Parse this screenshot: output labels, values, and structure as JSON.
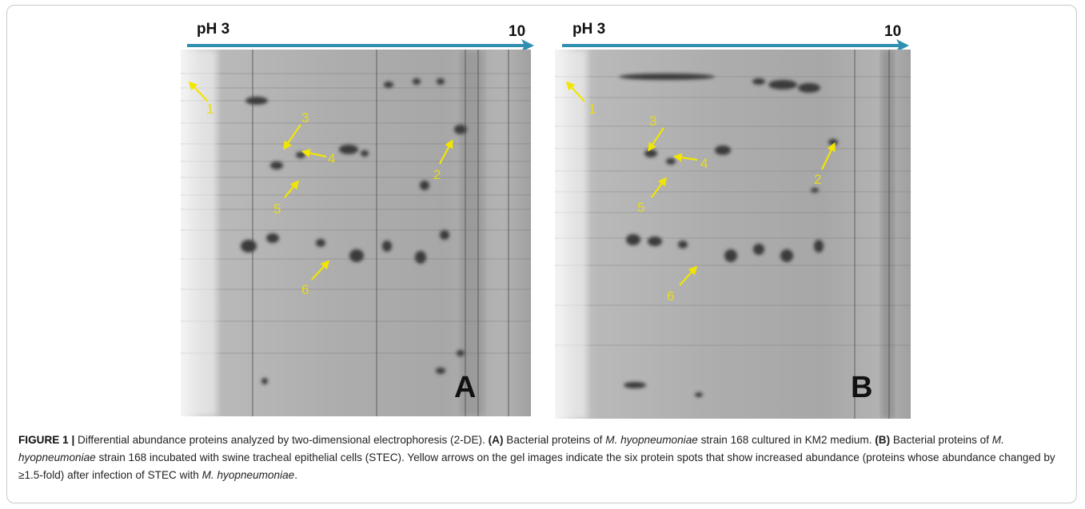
{
  "panels": [
    {
      "id": "A",
      "letter": "A",
      "ph_start": "pH 3",
      "ph_end": "10",
      "spots": [
        "1",
        "2",
        "3",
        "4",
        "5",
        "6"
      ]
    },
    {
      "id": "B",
      "letter": "B",
      "ph_start": "pH 3",
      "ph_end": "10",
      "spots": [
        "1",
        "2",
        "3",
        "4",
        "5",
        "6"
      ]
    }
  ],
  "colors": {
    "arrow_axis": "#2f8fb0",
    "spot_arrow": "#f2e600",
    "spot_label": "#e8dc1a"
  },
  "caption": {
    "figure_label": "FIGURE 1 |",
    "intro": " Differential abundance proteins analyzed by two-dimensional electrophoresis (2-DE). ",
    "a_label": "(A)",
    "a_text_1": " Bacterial proteins of ",
    "a_species": "M. hyopneumoniae",
    "a_text_2": " strain 168 cultured in KM2 medium. ",
    "b_label": "(B)",
    "b_text_1": " Bacterial proteins of ",
    "b_species": "M. hyopneumoniae",
    "b_text_2": " strain 168 incubated with swine tracheal epithelial cells (STEC). Yellow arrows on the gel images indicate the six protein spots that show increased abundance (proteins whose abundance changed by ≥1.5-fold) after infection of STEC with ",
    "end_species": "M. hyopneumoniae",
    "end_text": "."
  }
}
